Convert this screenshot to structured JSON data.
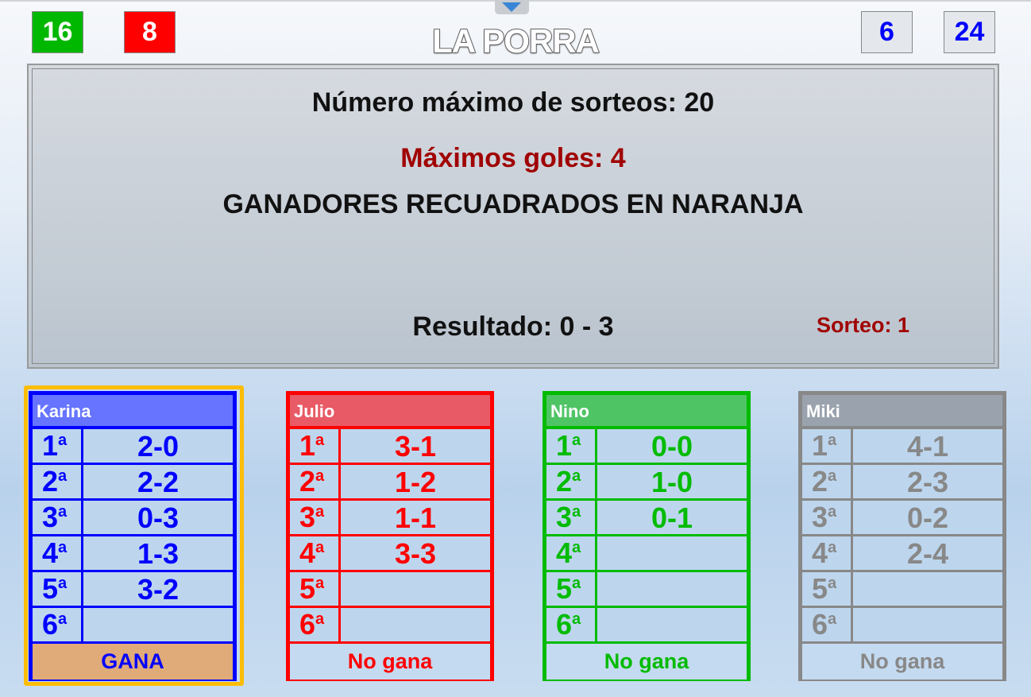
{
  "title": "LA PORRA",
  "counters": {
    "green": "16",
    "red": "8",
    "blue1": "6",
    "blue2": "24"
  },
  "panel": {
    "max_draws": "Número máximo de sorteos: 20",
    "max_goals": "Máximos goles: 4",
    "winners_note": "GANADORES RECUADRADOS EN NARANJA",
    "result": "Resultado: 0 - 3",
    "draw": "Sorteo: 1"
  },
  "ordinal_suffix": "a",
  "players": [
    {
      "name": "Karina",
      "color": "#0000ff",
      "header": "#6674ff",
      "bets": [
        "2-0",
        "2-2",
        "0-3",
        "1-3",
        "3-2",
        ""
      ],
      "result": "GANA",
      "winner": true
    },
    {
      "name": "Julio",
      "color": "#ff0000",
      "header": "#e85a65",
      "bets": [
        "3-1",
        "1-2",
        "1-1",
        "3-3",
        "",
        ""
      ],
      "result": "No gana",
      "winner": false
    },
    {
      "name": "Nino",
      "color": "#00bb00",
      "header": "#4fc465",
      "bets": [
        "0-0",
        "1-0",
        "0-1",
        "",
        "",
        ""
      ],
      "result": "No gana",
      "winner": false
    },
    {
      "name": "Miki",
      "color": "#888888",
      "header": "#9aa2ad",
      "bets": [
        "4-1",
        "2-3",
        "0-2",
        "2-4",
        "",
        ""
      ],
      "result": "No gana",
      "winner": false
    }
  ]
}
